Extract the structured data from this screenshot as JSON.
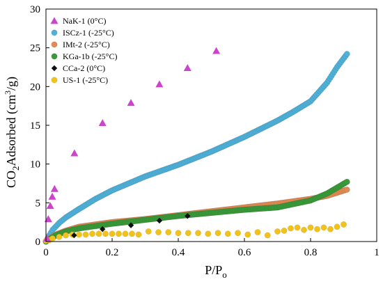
{
  "chart_data": {
    "type": "scatter",
    "xlabel": {
      "main": "P/P",
      "sub": "o"
    },
    "ylabel": {
      "pre": "CO",
      "sub": "2",
      "mid": "Adsorbed (cm",
      "sup": "3",
      "post": "/g)"
    },
    "xlim": [
      0,
      1
    ],
    "ylim": [
      0,
      30
    ],
    "xticks": [
      0,
      0.2,
      0.4,
      0.6,
      0.8,
      1
    ],
    "xtick_labels": [
      "0",
      "0.2",
      "0.4",
      "0.6",
      "0.8",
      "1"
    ],
    "yticks": [
      0,
      5,
      10,
      15,
      20,
      25,
      30
    ],
    "ytick_labels": [
      "0",
      "5",
      "10",
      "15",
      "20",
      "25",
      "30"
    ],
    "grid": false,
    "legend_position": "top-left",
    "series": [
      {
        "name": "NaK-1 (0°C)",
        "marker": "triangle",
        "color": "#cc44cc",
        "x": [
          0.003,
          0.007,
          0.013,
          0.019,
          0.026,
          0.086,
          0.171,
          0.257,
          0.343,
          0.428,
          0.515
        ],
        "y": [
          0.4,
          2.9,
          4.6,
          5.8,
          6.8,
          11.4,
          15.3,
          17.9,
          20.3,
          22.4,
          24.6
        ]
      },
      {
        "name": "ISCz-1 (-25°C)",
        "marker": "circle",
        "color": "#4fb0d8",
        "dense": true,
        "x": [
          0,
          0.01,
          0.02,
          0.04,
          0.06,
          0.1,
          0.15,
          0.2,
          0.3,
          0.4,
          0.5,
          0.6,
          0.7,
          0.75,
          0.8,
          0.85,
          0.88,
          0.91
        ],
        "y": [
          0,
          0.8,
          1.5,
          2.4,
          3.1,
          4.2,
          5.5,
          6.6,
          8.4,
          9.9,
          11.6,
          13.5,
          15.6,
          16.8,
          18.1,
          20.5,
          22.5,
          24.2
        ]
      },
      {
        "name": "IMt-2 (-25°C)",
        "marker": "circle",
        "color": "#e08a55",
        "dense": true,
        "x": [
          0,
          0.01,
          0.03,
          0.06,
          0.1,
          0.2,
          0.3,
          0.4,
          0.5,
          0.6,
          0.7,
          0.8,
          0.85,
          0.91
        ],
        "y": [
          0,
          0.4,
          0.9,
          1.4,
          1.9,
          2.5,
          2.9,
          3.4,
          3.9,
          4.4,
          4.9,
          5.5,
          5.9,
          6.7
        ]
      },
      {
        "name": "KGa-1b (-25°C)",
        "marker": "circle",
        "color": "#3a9a3a",
        "dense": true,
        "x": [
          0,
          0.01,
          0.03,
          0.06,
          0.1,
          0.15,
          0.2,
          0.3,
          0.4,
          0.5,
          0.6,
          0.7,
          0.8,
          0.85,
          0.91
        ],
        "y": [
          0,
          0.3,
          0.8,
          1.3,
          1.7,
          2.0,
          2.3,
          2.8,
          3.3,
          3.7,
          4.1,
          4.4,
          5.3,
          6.2,
          7.7
        ]
      },
      {
        "name": "CCa-2 (0°C)",
        "marker": "diamond",
        "color": "#111111",
        "x": [
          0.085,
          0.171,
          0.257,
          0.343,
          0.428
        ],
        "y": [
          0.8,
          1.6,
          2.1,
          2.7,
          3.3
        ]
      },
      {
        "name": "US-1 (-25°C)",
        "marker": "circle",
        "color": "#f2c21b",
        "dense": false,
        "x": [
          0,
          0.01,
          0.02,
          0.04,
          0.06,
          0.08,
          0.1,
          0.12,
          0.14,
          0.16,
          0.18,
          0.2,
          0.22,
          0.24,
          0.26,
          0.28,
          0.31,
          0.34,
          0.37,
          0.4,
          0.43,
          0.46,
          0.49,
          0.52,
          0.55,
          0.58,
          0.61,
          0.64,
          0.67,
          0.7,
          0.72,
          0.74,
          0.76,
          0.78,
          0.8,
          0.82,
          0.84,
          0.86,
          0.88,
          0.9
        ],
        "y": [
          0.1,
          0.2,
          0.4,
          0.6,
          0.8,
          0.9,
          0.9,
          0.9,
          1.0,
          1.0,
          1.0,
          1.0,
          1.0,
          1.0,
          1.0,
          0.9,
          1.3,
          1.2,
          1.2,
          1.1,
          1.1,
          1.1,
          1.0,
          1.1,
          1.0,
          1.1,
          0.9,
          1.2,
          0.8,
          1.3,
          1.4,
          1.7,
          1.8,
          1.5,
          1.8,
          1.6,
          1.8,
          1.6,
          1.9,
          2.2
        ]
      }
    ]
  }
}
